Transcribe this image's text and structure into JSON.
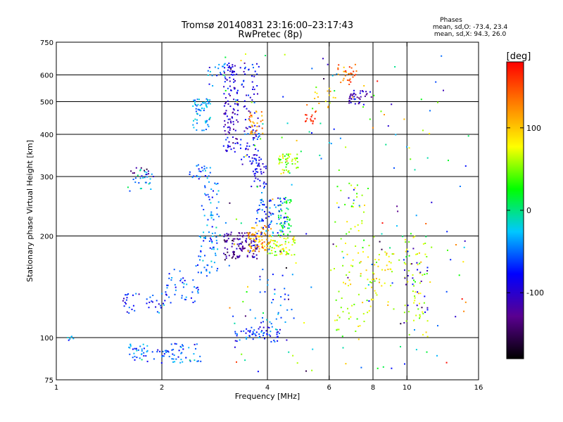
{
  "chart_data": {
    "type": "scatter",
    "title": "Tromsø 20140831 23:16:00–23:17:43",
    "subtitle": "RwPretec (8p)",
    "xlabel": "Frequency [MHz]",
    "ylabel": "Stationary phase Virtual Height [km]",
    "x_scale": "log",
    "y_scale": "log",
    "xlim": [
      1,
      16
    ],
    "ylim": [
      75,
      750
    ],
    "x_ticks": [
      1,
      2,
      4,
      6,
      8,
      10,
      16
    ],
    "x_tick_labels": [
      "1",
      "2",
      "4",
      "6",
      "8",
      "10",
      "16"
    ],
    "x_grid": [
      2,
      4,
      6,
      8,
      10
    ],
    "y_ticks": [
      75,
      100,
      200,
      300,
      400,
      500,
      600,
      750
    ],
    "y_tick_labels": [
      "75",
      "100",
      "200",
      "300",
      "400",
      "500",
      "600",
      "750"
    ],
    "y_grid": [
      100,
      200,
      300,
      400,
      500,
      600
    ],
    "grid": true,
    "stats": {
      "heading": "Phases",
      "line_o": "mean, sd,O: -73.4, 23.4",
      "line_x": "mean, sd,X:  94.3, 26.0"
    },
    "colorbar": {
      "label": "[deg]",
      "range": [
        -180,
        180
      ],
      "ticks": [
        100,
        0,
        -100
      ],
      "tick_labels": [
        "100",
        "0",
        "-100"
      ],
      "stops": [
        "#000000",
        "#5a0090",
        "#0000ff",
        "#00c8ff",
        "#00ff00",
        "#ffff00",
        "#ff8000",
        "#ff0000"
      ]
    },
    "clusters": [
      {
        "x": [
          1.05,
          1.13
        ],
        "y": [
          97,
          102
        ],
        "n": 6,
        "phase": -30
      },
      {
        "x": [
          1.6,
          2.6
        ],
        "y": [
          84,
          96
        ],
        "n": 90,
        "phase": -50
      },
      {
        "x": [
          1.55,
          2.1
        ],
        "y": [
          118,
          135
        ],
        "n": 40,
        "phase": -70
      },
      {
        "x": [
          2.05,
          2.55
        ],
        "y": [
          125,
          160
        ],
        "n": 40,
        "phase": -55
      },
      {
        "x": [
          2.5,
          2.9
        ],
        "y": [
          150,
          200
        ],
        "n": 50,
        "phase": -45
      },
      {
        "x": [
          2.6,
          2.95
        ],
        "y": [
          200,
          290
        ],
        "n": 40,
        "phase": -45
      },
      {
        "x": [
          1.6,
          1.9
        ],
        "y": [
          270,
          320
        ],
        "n": 25,
        "phase": -30
      },
      {
        "x": [
          1.6,
          1.9
        ],
        "y": [
          290,
          320
        ],
        "n": 12,
        "phase": -120
      },
      {
        "x": [
          2.4,
          2.75
        ],
        "y": [
          295,
          325
        ],
        "n": 25,
        "phase": -50
      },
      {
        "x": [
          2.45,
          2.75
        ],
        "y": [
          410,
          510
        ],
        "n": 60,
        "phase": -40
      },
      {
        "x": [
          2.7,
          3.05
        ],
        "y": [
          550,
          650
        ],
        "n": 20,
        "phase": -50
      },
      {
        "x": [
          3.0,
          3.3
        ],
        "y": [
          350,
          650
        ],
        "n": 120,
        "phase": -100
      },
      {
        "x": [
          3.35,
          3.8
        ],
        "y": [
          330,
          650
        ],
        "n": 90,
        "phase": -85
      },
      {
        "x": [
          3.6,
          4.0
        ],
        "y": [
          280,
          340
        ],
        "n": 40,
        "phase": -90
      },
      {
        "x": [
          3.55,
          3.9
        ],
        "y": [
          400,
          470
        ],
        "n": 30,
        "phase": 120
      },
      {
        "x": [
          3.0,
          3.4
        ],
        "y": [
          170,
          205
        ],
        "n": 70,
        "phase": -125
      },
      {
        "x": [
          3.4,
          3.75
        ],
        "y": [
          170,
          205
        ],
        "n": 50,
        "phase": -110
      },
      {
        "x": [
          3.5,
          4.1
        ],
        "y": [
          180,
          215
        ],
        "n": 80,
        "phase": 115
      },
      {
        "x": [
          4.0,
          4.8
        ],
        "y": [
          175,
          200
        ],
        "n": 60,
        "phase": 70
      },
      {
        "x": [
          4.3,
          4.7
        ],
        "y": [
          200,
          260
        ],
        "n": 50,
        "phase": 20
      },
      {
        "x": [
          3.7,
          4.5
        ],
        "y": [
          200,
          260
        ],
        "n": 70,
        "phase": -55
      },
      {
        "x": [
          4.3,
          4.9
        ],
        "y": [
          305,
          350
        ],
        "n": 50,
        "phase": 55
      },
      {
        "x": [
          3.2,
          4.4
        ],
        "y": [
          97,
          108
        ],
        "n": 60,
        "phase": -70
      },
      {
        "x": [
          3.8,
          4.8
        ],
        "y": [
          110,
          160
        ],
        "n": 30,
        "phase": -60
      },
      {
        "x": [
          5.1,
          5.5
        ],
        "y": [
          430,
          470
        ],
        "n": 15,
        "phase": 160
      },
      {
        "x": [
          6.3,
          7.2
        ],
        "y": [
          560,
          650
        ],
        "n": 30,
        "phase": 140
      },
      {
        "x": [
          6.8,
          8.0
        ],
        "y": [
          490,
          540
        ],
        "n": 40,
        "phase": -110
      },
      {
        "x": [
          5.4,
          6.3
        ],
        "y": [
          480,
          550
        ],
        "n": 15,
        "phase": 90
      },
      {
        "x": [
          6.2,
          7.8
        ],
        "y": [
          100,
          300
        ],
        "n": 80,
        "phase": 60
      },
      {
        "x": [
          7.6,
          9.2
        ],
        "y": [
          120,
          180
        ],
        "n": 50,
        "phase": 80
      },
      {
        "x": [
          9.8,
          11.5
        ],
        "y": [
          100,
          200
        ],
        "n": 60,
        "phase": 60
      },
      {
        "x": [
          9.8,
          11.5
        ],
        "y": [
          110,
          190
        ],
        "n": 25,
        "phase": -100
      },
      {
        "x": [
          3.0,
          15.0
        ],
        "y": [
          78,
          700
        ],
        "n": 200,
        "phase": 0,
        "sd": 120
      }
    ]
  }
}
